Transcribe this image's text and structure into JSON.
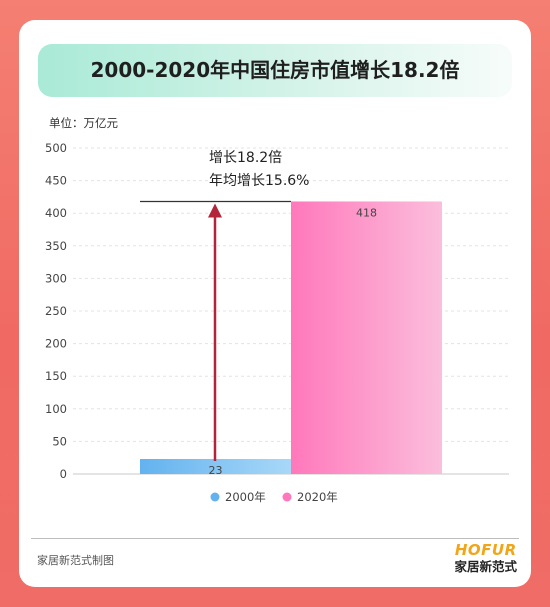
{
  "title": "2000-2020年中国住房市值增长18.2倍",
  "unit_label": "单位：万亿元",
  "annotation": {
    "line1": "增长18.2倍",
    "line2": "年均增长15.6%"
  },
  "footer": {
    "credit": "家居新范式制图",
    "brand_logo": "HOFUR",
    "brand_name": "家居新范式"
  },
  "colors": {
    "series_2000_start": "#63b2ef",
    "series_2000_end": "#a8d8f8",
    "series_2020_start": "#ff78bb",
    "series_2020_end": "#fbbedc",
    "arrow": "#b3243a"
  },
  "chart_data": {
    "type": "bar",
    "categories": [
      "2000年",
      "2020年"
    ],
    "values": [
      23,
      418
    ],
    "data_labels": [
      "23",
      "418"
    ],
    "ylim": [
      0,
      500
    ],
    "yticks": [
      0,
      50,
      100,
      150,
      200,
      250,
      300,
      350,
      400,
      450,
      500
    ],
    "grid": true,
    "legend": [
      "2000年",
      "2020年"
    ],
    "legend_position": "bottom-center"
  }
}
